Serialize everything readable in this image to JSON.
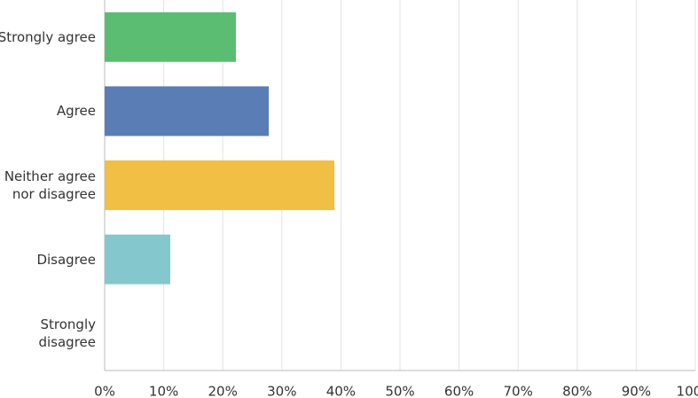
{
  "chart_data": {
    "type": "hbar",
    "categories": [
      "Strongly agree",
      "Agree",
      "Neither agree nor disagree",
      "Disagree",
      "Strongly disagree"
    ],
    "values": [
      22.22,
      27.78,
      38.89,
      11.11,
      0
    ],
    "colors": [
      "#5bbd72",
      "#5a7db5",
      "#f0bf43",
      "#84c7cd",
      "#d25f90"
    ],
    "xlim": [
      0,
      100
    ],
    "xticks": [
      {
        "value": 0,
        "label": "0%"
      },
      {
        "value": 10,
        "label": "10%"
      },
      {
        "value": 20,
        "label": "20%"
      },
      {
        "value": 30,
        "label": "30%"
      },
      {
        "value": 40,
        "label": "40%"
      },
      {
        "value": 50,
        "label": "50%"
      },
      {
        "value": 60,
        "label": "60%"
      },
      {
        "value": 70,
        "label": "70%"
      },
      {
        "value": 80,
        "label": "80%"
      },
      {
        "value": 90,
        "label": "90%"
      },
      {
        "value": 100,
        "label": "100%"
      }
    ],
    "grid": true
  }
}
